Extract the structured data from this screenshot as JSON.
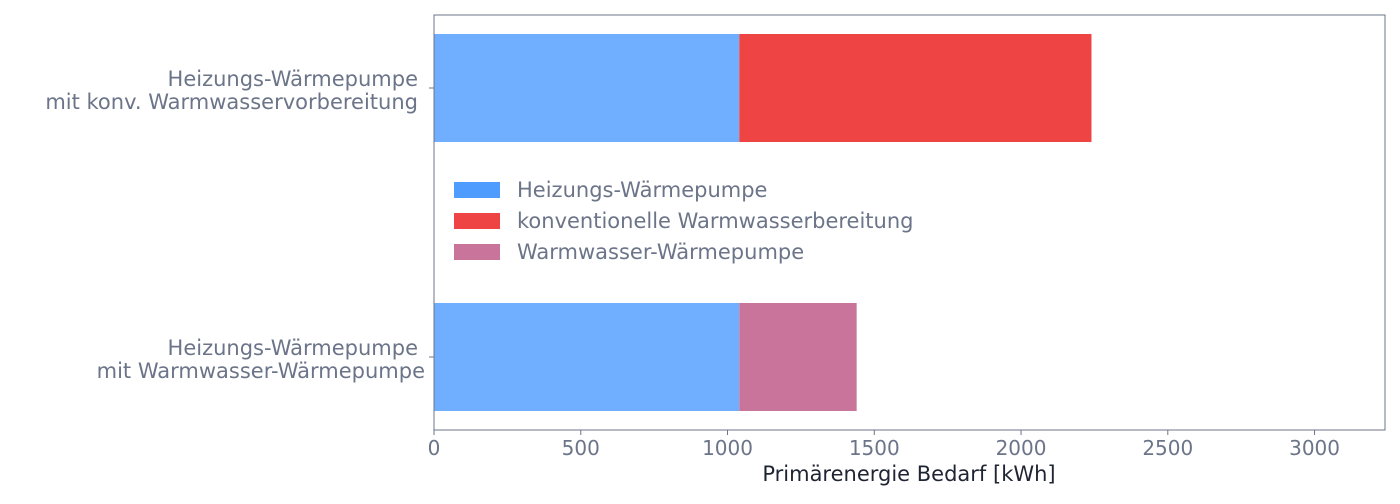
{
  "chart_data": {
    "type": "bar",
    "orientation": "horizontal",
    "stacked": true,
    "categories": [
      "Heizungs-Wärmepumpe\nmit konv. Warmwasservorbereitung",
      "Heizungs-Wärmepumpe\nmit Warmwasser-Wärmepumpe"
    ],
    "series": [
      {
        "name": "Heizungs-Wärmepumpe",
        "values": [
          1040,
          1040
        ],
        "color": "#70aeff",
        "legend_color": "#4f9cff"
      },
      {
        "name": "konventionelle Warmwasserbereitung",
        "values": [
          1200,
          0
        ],
        "color": "#ef4444",
        "legend_color": "#ef4444"
      },
      {
        "name": "Warmwasser-Wärmepumpe",
        "values": [
          0,
          400
        ],
        "color": "#c9759b",
        "legend_color": "#c9759b"
      }
    ],
    "xlabel": "Primärenergie Bedarf [kWh]",
    "ylabel": "",
    "xlim": [
      0,
      3240
    ],
    "xticks": [
      "0",
      "500",
      "1000",
      "1500",
      "2000",
      "2500",
      "3000"
    ],
    "grid": false,
    "legend_position": "center-left"
  }
}
